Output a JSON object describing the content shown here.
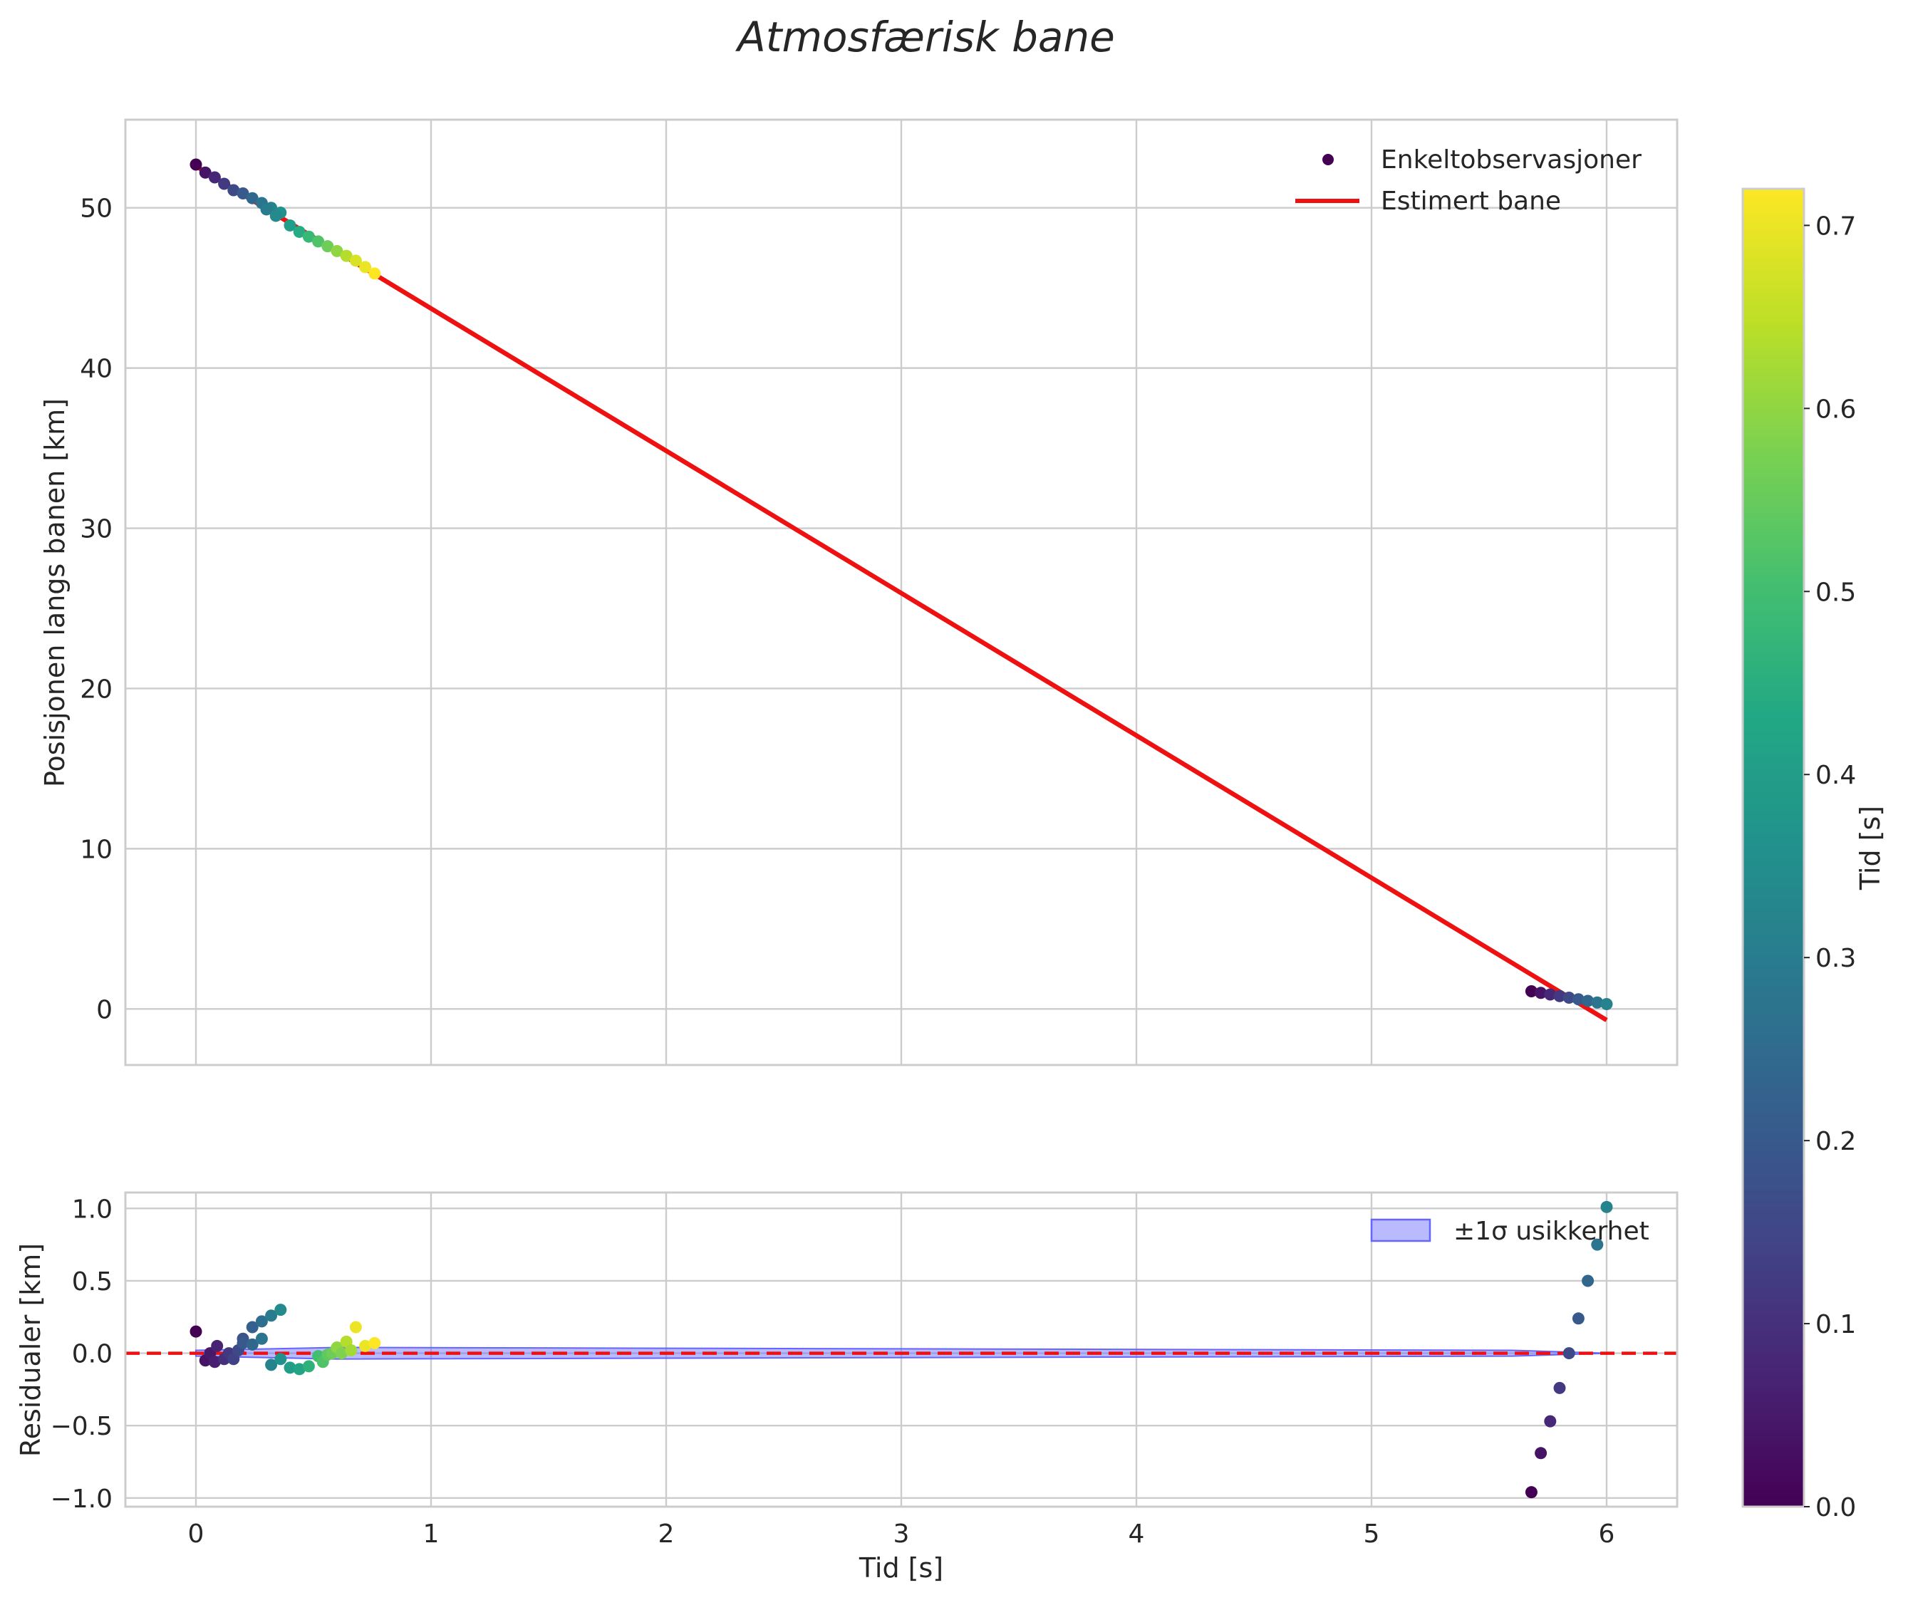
{
  "chart_data": {
    "title": "Atmosfærisk bane",
    "colors": {
      "fit_line": "#ee1111",
      "band": "#6666ff",
      "zero_line": "#ee1111"
    },
    "top": {
      "type": "scatter",
      "ylabel": "Posisjonen langs banen [km]",
      "xlim": [
        -0.3,
        6.3
      ],
      "ylim": [
        -3.5,
        55.5
      ],
      "yticks": [
        0,
        10,
        20,
        30,
        40,
        50
      ],
      "ytick_labels": [
        "0",
        "10",
        "20",
        "30",
        "40",
        "50"
      ],
      "legend": {
        "position": "top-right",
        "entries": [
          {
            "label": "Enkeltobservasjoner",
            "kind": "marker",
            "color": "#440154"
          },
          {
            "label": "Estimert bane",
            "kind": "line",
            "color": "#ee1111"
          }
        ]
      },
      "fit_line": {
        "x": [
          0.0,
          6.0
        ],
        "y": [
          52.6,
          -0.7
        ]
      },
      "observations": [
        {
          "t": 0.0,
          "y": 52.7,
          "c": 0.0
        },
        {
          "t": 0.04,
          "y": 52.2,
          "c": 0.04
        },
        {
          "t": 0.08,
          "y": 51.9,
          "c": 0.08
        },
        {
          "t": 0.12,
          "y": 51.5,
          "c": 0.12
        },
        {
          "t": 0.16,
          "y": 51.1,
          "c": 0.16
        },
        {
          "t": 0.2,
          "y": 50.9,
          "c": 0.2
        },
        {
          "t": 0.24,
          "y": 50.6,
          "c": 0.24
        },
        {
          "t": 0.28,
          "y": 50.3,
          "c": 0.28
        },
        {
          "t": 0.32,
          "y": 50.0,
          "c": 0.32
        },
        {
          "t": 0.36,
          "y": 49.7,
          "c": 0.36
        },
        {
          "t": 0.3,
          "y": 49.9,
          "c": 0.3
        },
        {
          "t": 0.34,
          "y": 49.5,
          "c": 0.34
        },
        {
          "t": 0.4,
          "y": 48.9,
          "c": 0.4
        },
        {
          "t": 0.44,
          "y": 48.5,
          "c": 0.44
        },
        {
          "t": 0.48,
          "y": 48.2,
          "c": 0.48
        },
        {
          "t": 0.52,
          "y": 47.9,
          "c": 0.52
        },
        {
          "t": 0.56,
          "y": 47.6,
          "c": 0.56
        },
        {
          "t": 0.6,
          "y": 47.3,
          "c": 0.6
        },
        {
          "t": 0.64,
          "y": 47.0,
          "c": 0.64
        },
        {
          "t": 0.68,
          "y": 46.7,
          "c": 0.68
        },
        {
          "t": 0.72,
          "y": 46.3,
          "c": 0.7
        },
        {
          "t": 0.76,
          "y": 45.9,
          "c": 0.72
        },
        {
          "t": 5.68,
          "y": 1.1,
          "c": 0.0
        },
        {
          "t": 5.72,
          "y": 1.0,
          "c": 0.04
        },
        {
          "t": 5.76,
          "y": 0.9,
          "c": 0.08
        },
        {
          "t": 5.8,
          "y": 0.8,
          "c": 0.12
        },
        {
          "t": 5.84,
          "y": 0.7,
          "c": 0.16
        },
        {
          "t": 5.88,
          "y": 0.6,
          "c": 0.2
        },
        {
          "t": 5.92,
          "y": 0.5,
          "c": 0.24
        },
        {
          "t": 5.96,
          "y": 0.4,
          "c": 0.28
        },
        {
          "t": 6.0,
          "y": 0.3,
          "c": 0.32
        }
      ]
    },
    "bottom": {
      "type": "scatter",
      "xlabel": "Tid [s]",
      "ylabel": "Residualer [km]",
      "xlim": [
        -0.3,
        6.3
      ],
      "ylim": [
        -1.06,
        1.11
      ],
      "xticks": [
        0,
        1,
        2,
        3,
        4,
        5,
        6
      ],
      "xtick_labels": [
        "0",
        "1",
        "2",
        "3",
        "4",
        "5",
        "6"
      ],
      "yticks": [
        -1.0,
        -0.5,
        0.0,
        0.5,
        1.0
      ],
      "ytick_labels": [
        "−1.0",
        "−0.5",
        "0.0",
        "0.5",
        "1.0"
      ],
      "legend": {
        "position": "top-right",
        "entries": [
          {
            "label": "±1σ usikkerhet",
            "kind": "patch",
            "color": "#6666ff"
          }
        ]
      },
      "band": {
        "x": [
          0.0,
          0.6,
          5.6,
          6.0
        ],
        "upper": [
          0.02,
          0.04,
          0.02,
          0.0
        ],
        "lower": [
          -0.02,
          -0.04,
          -0.02,
          0.0
        ]
      },
      "zero_line_y": 0.0,
      "residuals": [
        {
          "t": 0.0,
          "r": 0.15,
          "c": 0.0
        },
        {
          "t": 0.04,
          "r": -0.05,
          "c": 0.04
        },
        {
          "t": 0.06,
          "r": 0.0,
          "c": 0.05
        },
        {
          "t": 0.08,
          "r": -0.06,
          "c": 0.06
        },
        {
          "t": 0.09,
          "r": 0.05,
          "c": 0.07
        },
        {
          "t": 0.12,
          "r": -0.04,
          "c": 0.1
        },
        {
          "t": 0.14,
          "r": 0.0,
          "c": 0.12
        },
        {
          "t": 0.16,
          "r": -0.04,
          "c": 0.14
        },
        {
          "t": 0.18,
          "r": 0.02,
          "c": 0.16
        },
        {
          "t": 0.2,
          "r": 0.1,
          "c": 0.18
        },
        {
          "t": 0.24,
          "r": 0.18,
          "c": 0.22
        },
        {
          "t": 0.28,
          "r": 0.22,
          "c": 0.26
        },
        {
          "t": 0.32,
          "r": 0.26,
          "c": 0.3
        },
        {
          "t": 0.36,
          "r": 0.3,
          "c": 0.34
        },
        {
          "t": 0.2,
          "r": 0.07,
          "c": 0.2
        },
        {
          "t": 0.24,
          "r": 0.06,
          "c": 0.24
        },
        {
          "t": 0.28,
          "r": 0.1,
          "c": 0.28
        },
        {
          "t": 0.32,
          "r": -0.08,
          "c": 0.32
        },
        {
          "t": 0.36,
          "r": -0.04,
          "c": 0.36
        },
        {
          "t": 0.4,
          "r": -0.1,
          "c": 0.4
        },
        {
          "t": 0.44,
          "r": -0.11,
          "c": 0.42
        },
        {
          "t": 0.48,
          "r": -0.09,
          "c": 0.46
        },
        {
          "t": 0.52,
          "r": -0.02,
          "c": 0.5
        },
        {
          "t": 0.54,
          "r": -0.06,
          "c": 0.52
        },
        {
          "t": 0.56,
          "r": -0.01,
          "c": 0.54
        },
        {
          "t": 0.58,
          "r": 0.0,
          "c": 0.56
        },
        {
          "t": 0.6,
          "r": 0.04,
          "c": 0.6
        },
        {
          "t": 0.62,
          "r": 0.0,
          "c": 0.58
        },
        {
          "t": 0.64,
          "r": 0.08,
          "c": 0.64
        },
        {
          "t": 0.66,
          "r": 0.02,
          "c": 0.62
        },
        {
          "t": 0.68,
          "r": 0.18,
          "c": 0.7
        },
        {
          "t": 0.72,
          "r": 0.05,
          "c": 0.7
        },
        {
          "t": 0.76,
          "r": 0.07,
          "c": 0.72
        },
        {
          "t": 5.68,
          "r": -0.96,
          "c": 0.0
        },
        {
          "t": 5.72,
          "r": -0.69,
          "c": 0.04
        },
        {
          "t": 5.76,
          "r": -0.47,
          "c": 0.08
        },
        {
          "t": 5.8,
          "r": -0.24,
          "c": 0.12
        },
        {
          "t": 5.84,
          "r": 0.0,
          "c": 0.16
        },
        {
          "t": 5.88,
          "r": 0.24,
          "c": 0.2
        },
        {
          "t": 5.92,
          "r": 0.5,
          "c": 0.24
        },
        {
          "t": 5.96,
          "r": 0.75,
          "c": 0.28
        },
        {
          "t": 6.0,
          "r": 1.01,
          "c": 0.32
        }
      ]
    },
    "colorbar": {
      "label": "Tid [s]",
      "colormap": "viridis",
      "range": [
        0.0,
        0.72
      ],
      "ticks": [
        0.0,
        0.1,
        0.2,
        0.3,
        0.4,
        0.5,
        0.6,
        0.7
      ],
      "tick_labels": [
        "0.0",
        "0.1",
        "0.2",
        "0.3",
        "0.4",
        "0.5",
        "0.6",
        "0.7"
      ]
    }
  }
}
